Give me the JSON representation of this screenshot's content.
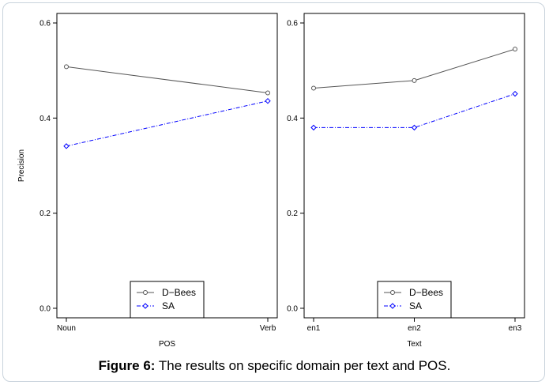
{
  "caption": {
    "label": "Figure 6:",
    "text": " The results on specific domain per text and POS."
  },
  "colors": {
    "series_1": "#555555",
    "series_2": "#0000ff",
    "box": "#000000"
  },
  "chart_data": [
    {
      "type": "line",
      "title": "",
      "xlabel": "POS",
      "ylabel": "Precision",
      "categories": [
        "Noun",
        "Verb"
      ],
      "ylim": [
        -0.02,
        0.62
      ],
      "yticks": [
        0.0,
        0.2,
        0.4,
        0.6
      ],
      "ytick_labels": [
        "0.0",
        "0.2",
        "0.4",
        "0.6"
      ],
      "grid": false,
      "legend_position": "bottom-center",
      "series": [
        {
          "name": "D−Bees",
          "values": [
            0.508,
            0.453
          ],
          "style": "solid",
          "marker": "circle"
        },
        {
          "name": "SA",
          "values": [
            0.341,
            0.436
          ],
          "style": "dashdot",
          "marker": "diamond"
        }
      ]
    },
    {
      "type": "line",
      "title": "",
      "xlabel": "Text",
      "ylabel": "",
      "categories": [
        "en1",
        "en2",
        "en3"
      ],
      "ylim": [
        -0.02,
        0.62
      ],
      "yticks": [
        0.0,
        0.2,
        0.4,
        0.6
      ],
      "ytick_labels": [
        "0.0",
        "0.2",
        "0.4",
        "0.6"
      ],
      "grid": false,
      "legend_position": "bottom-center",
      "series": [
        {
          "name": "D−Bees",
          "values": [
            0.463,
            0.479,
            0.545
          ],
          "style": "solid",
          "marker": "circle"
        },
        {
          "name": "SA",
          "values": [
            0.38,
            0.38,
            0.451
          ],
          "style": "dashdot",
          "marker": "diamond"
        }
      ]
    }
  ]
}
